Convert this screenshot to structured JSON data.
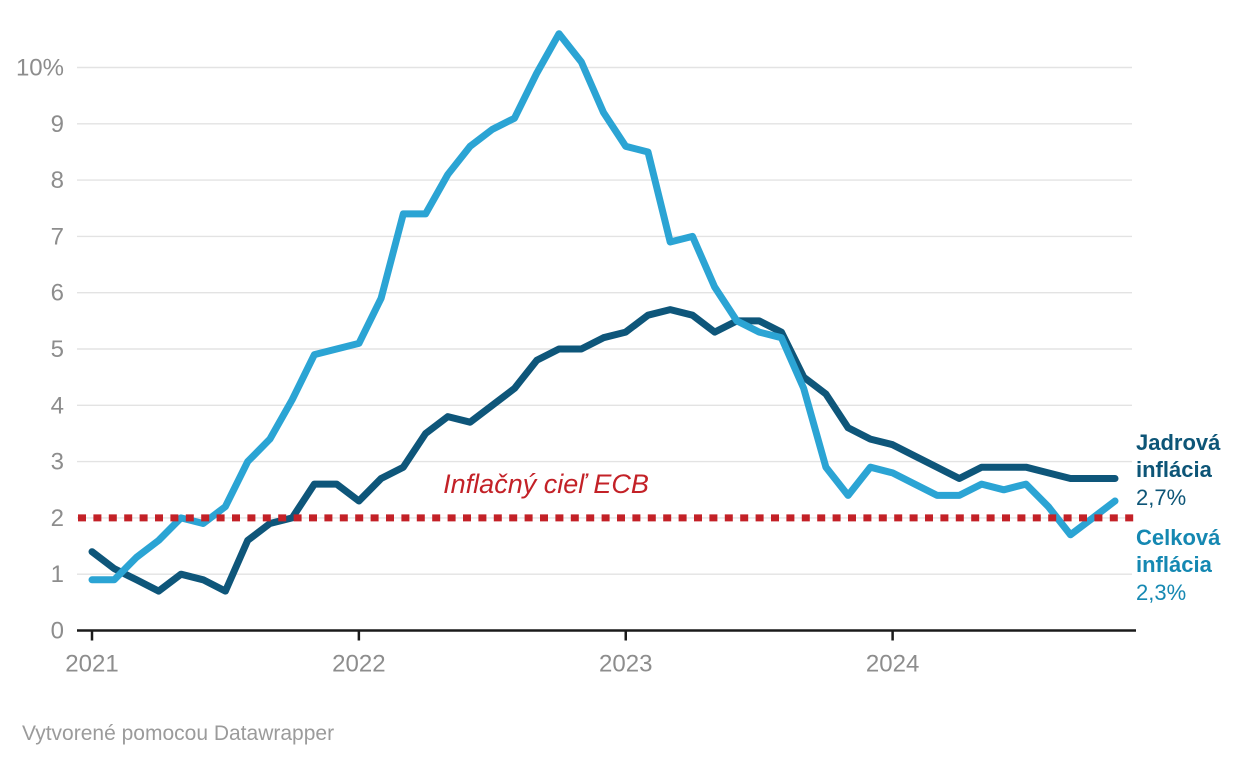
{
  "chart_data": {
    "type": "line",
    "title": "",
    "x_start": "2021-01",
    "x_end": "2024-11",
    "x_unit": "month",
    "grid": true,
    "ylim": [
      0,
      10.6
    ],
    "y_ticks": [
      {
        "value": 10,
        "label": "10%"
      },
      {
        "value": 9,
        "label": "9"
      },
      {
        "value": 8,
        "label": "8"
      },
      {
        "value": 7,
        "label": "7"
      },
      {
        "value": 6,
        "label": "6"
      },
      {
        "value": 5,
        "label": "5"
      },
      {
        "value": 4,
        "label": "4"
      },
      {
        "value": 3,
        "label": "3"
      },
      {
        "value": 2,
        "label": "2"
      },
      {
        "value": 1,
        "label": "1"
      },
      {
        "value": 0,
        "label": "0"
      }
    ],
    "x_ticks": [
      {
        "month_index": 0,
        "label": "2021"
      },
      {
        "month_index": 12,
        "label": "2022"
      },
      {
        "month_index": 24,
        "label": "2023"
      },
      {
        "month_index": 36,
        "label": "2024"
      }
    ],
    "series": [
      {
        "name": "Jadrová inflácia",
        "end_value_label": "2,7%",
        "color": "#0e567a",
        "label_color": "#0d5577",
        "values": [
          1.4,
          1.1,
          0.9,
          0.7,
          1.0,
          0.9,
          0.7,
          1.6,
          1.9,
          2.0,
          2.6,
          2.6,
          2.3,
          2.7,
          2.9,
          3.5,
          3.8,
          3.7,
          4.0,
          4.3,
          4.8,
          5.0,
          5.0,
          5.2,
          5.3,
          5.6,
          5.7,
          5.6,
          5.3,
          5.5,
          5.5,
          5.3,
          4.5,
          4.2,
          3.6,
          3.4,
          3.3,
          3.1,
          2.9,
          2.7,
          2.9,
          2.9,
          2.9,
          2.8,
          2.7,
          2.7,
          2.7
        ]
      },
      {
        "name": "Celková inflácia",
        "end_value_label": "2,3%",
        "color": "#2ba4d4",
        "label_color": "#1588b2",
        "values": [
          0.9,
          0.9,
          1.3,
          1.6,
          2.0,
          1.9,
          2.2,
          3.0,
          3.4,
          4.1,
          4.9,
          5.0,
          5.1,
          5.9,
          7.4,
          7.4,
          8.1,
          8.6,
          8.9,
          9.1,
          9.9,
          10.6,
          10.1,
          9.2,
          8.6,
          8.5,
          6.9,
          7.0,
          6.1,
          5.5,
          5.3,
          5.2,
          4.3,
          2.9,
          2.4,
          2.9,
          2.8,
          2.6,
          2.4,
          2.4,
          2.6,
          2.5,
          2.6,
          2.2,
          1.7,
          2.0,
          2.3
        ]
      }
    ],
    "reference_line": {
      "label": "Inflačný cieľ ECB",
      "value": 2,
      "color": "#c32127"
    },
    "legend_position": "right-of-line-ends"
  },
  "footer": {
    "credit": "Vytvorené pomocou Datawrapper"
  }
}
